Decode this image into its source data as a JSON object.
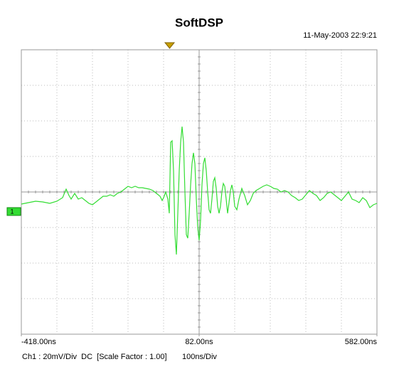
{
  "chart_data": {
    "type": "line",
    "title": "SoftDSP",
    "timestamp": "11-May-2003 22:9:21",
    "channel_label": "1",
    "channel_info": "Ch1 : 20mV/Div  DC  [Scale Factor : 1.00]",
    "timebase": "100ns/Div",
    "color": "#33dd33",
    "grid": true,
    "xlim": [
      -418,
      582
    ],
    "ylim": [
      -80,
      80
    ],
    "xticks": [
      {
        "value": -418,
        "label": "-418.00ns"
      },
      {
        "value": 82,
        "label": "82.00ns"
      },
      {
        "value": 582,
        "label": "582.00ns"
      }
    ],
    "x": [
      -418,
      -398,
      -378,
      -358,
      -338,
      -318,
      -302,
      -292,
      -284,
      -278,
      -268,
      -258,
      -248,
      -238,
      -228,
      -218,
      -208,
      -198,
      -188,
      -178,
      -168,
      -158,
      -148,
      -138,
      -128,
      -118,
      -108,
      -98,
      -88,
      -78,
      -68,
      -58,
      -48,
      -38,
      -28,
      -22,
      -18,
      -12,
      -6,
      -2,
      2,
      6,
      10,
      14,
      18,
      22,
      26,
      30,
      34,
      38,
      42,
      46,
      50,
      54,
      58,
      62,
      66,
      70,
      74,
      78,
      82,
      86,
      90,
      94,
      98,
      102,
      106,
      110,
      114,
      118,
      122,
      126,
      130,
      134,
      138,
      142,
      146,
      150,
      154,
      158,
      162,
      166,
      170,
      174,
      178,
      182,
      188,
      194,
      202,
      210,
      218,
      226,
      234,
      242,
      252,
      262,
      272,
      282,
      292,
      302,
      312,
      322,
      332,
      342,
      352,
      362,
      372,
      382,
      392,
      402,
      412,
      422,
      432,
      442,
      452,
      462,
      472,
      482,
      492,
      502,
      512,
      522,
      532,
      542,
      552,
      562,
      572,
      582
    ],
    "values": [
      -6.8,
      -6,
      -5.2,
      -5.6,
      -6.4,
      -5.2,
      -3.2,
      1.6,
      -2,
      -4,
      -0.8,
      -4,
      -3.2,
      -4.8,
      -6.4,
      -7.2,
      -5.6,
      -4,
      -2.4,
      -2.4,
      -1.6,
      -2.4,
      -0.8,
      0,
      1.6,
      3.2,
      2.4,
      3.2,
      2.4,
      2.4,
      2,
      1.6,
      0.8,
      -0.8,
      -2.4,
      -4.8,
      -3.2,
      0,
      -4,
      -12,
      28,
      28.8,
      12,
      -24,
      -35.2,
      -12,
      12,
      28,
      36.8,
      28,
      0,
      -24,
      -26,
      -12,
      4,
      16,
      22,
      16,
      -4,
      -20,
      -27.2,
      -16,
      4,
      16,
      19.2,
      12,
      0,
      -10,
      -12,
      -4,
      6,
      8,
      2,
      -8,
      -12,
      -8,
      0,
      4.8,
      3.2,
      -4,
      -12,
      -6,
      0.8,
      4,
      0,
      -8,
      -10,
      -4,
      2,
      -2,
      -7.2,
      -4.8,
      -0.8,
      0.8,
      2,
      3.2,
      4,
      3.2,
      2,
      1.6,
      0,
      0.8,
      0,
      -2,
      -3.2,
      -4.8,
      -4,
      -1.6,
      0.8,
      -0.8,
      -2,
      -4.8,
      -3.2,
      -0.8,
      0,
      -1.6,
      -3.2,
      -4.8,
      -2.4,
      0,
      -4,
      -4.8,
      -6,
      -3.2,
      -4.8,
      -8.8,
      -7.2,
      -6.4
    ]
  }
}
